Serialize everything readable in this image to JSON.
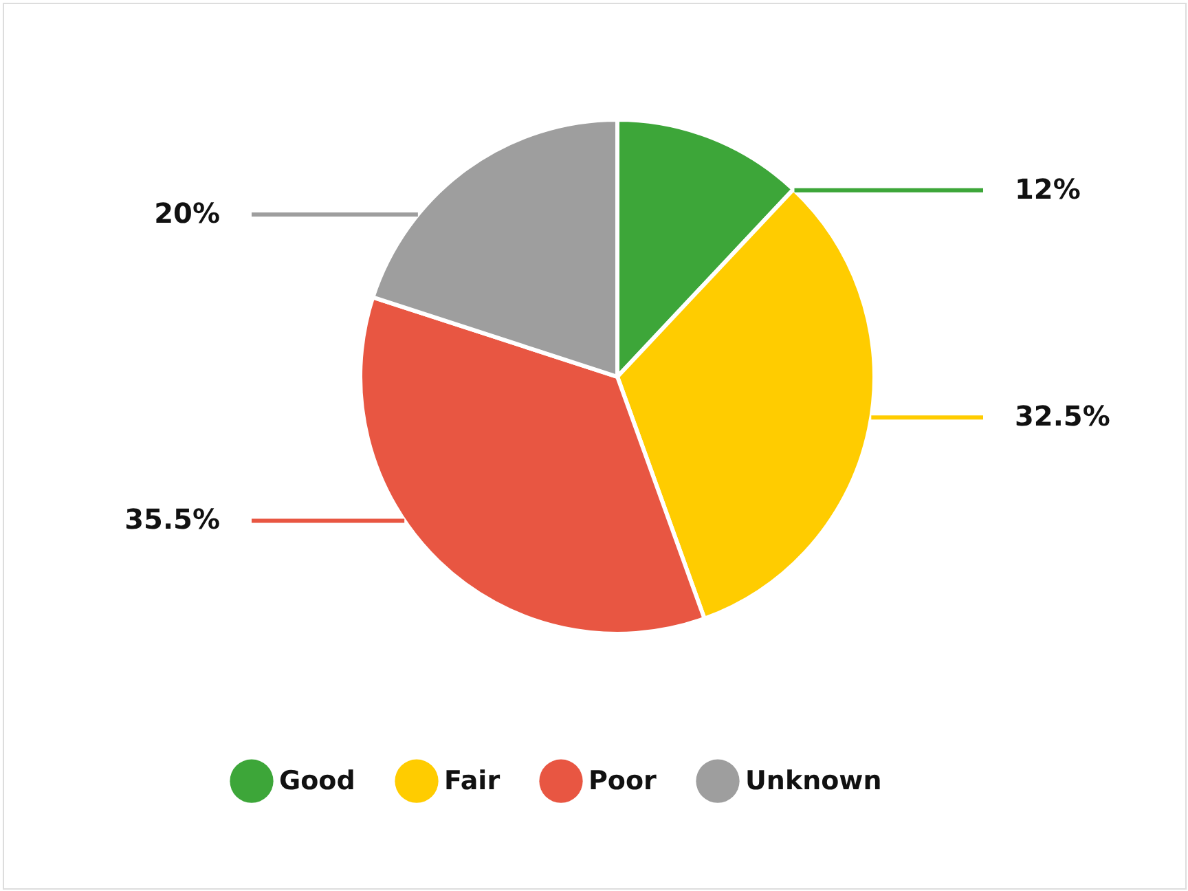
{
  "chart_data": {
    "type": "pie",
    "categories": [
      "Good",
      "Fair",
      "Poor",
      "Unknown"
    ],
    "values": [
      12,
      32.5,
      35.5,
      20
    ],
    "colors": [
      "#3da639",
      "#ffcc00",
      "#e85642",
      "#9e9e9e"
    ],
    "value_labels": [
      "12%",
      "32.5%",
      "35.5%",
      "20%"
    ],
    "legend": "bottom"
  }
}
